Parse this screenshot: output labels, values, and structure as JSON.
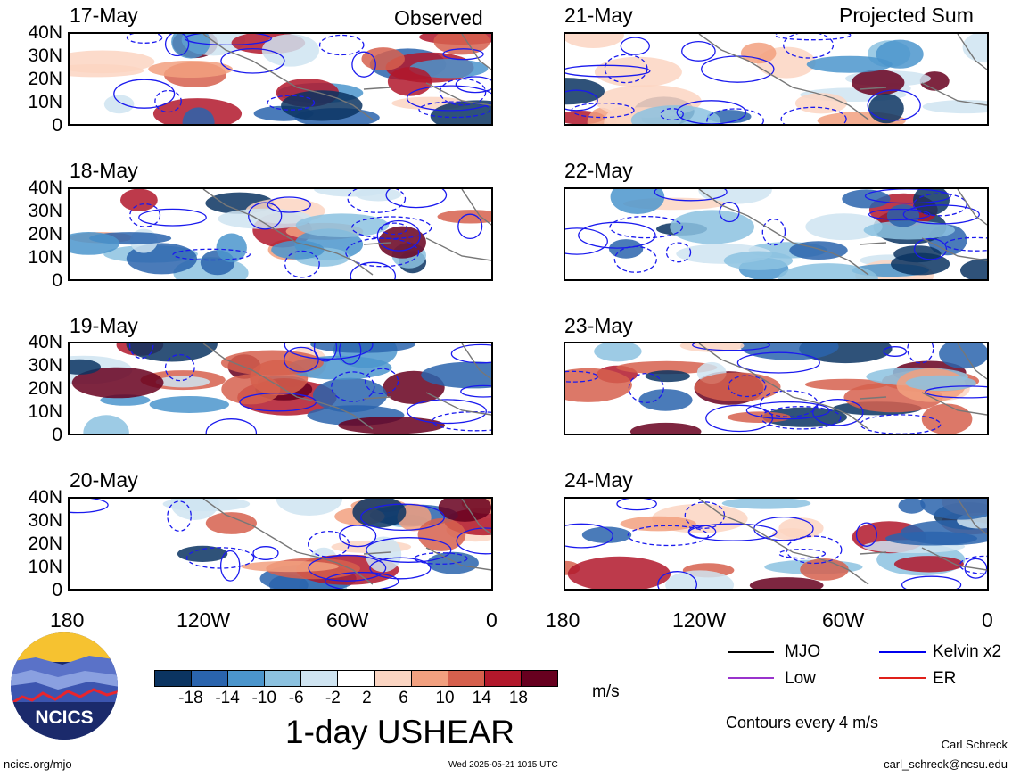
{
  "headers": {
    "left": "Observed",
    "right": "Projected Sum"
  },
  "left_panels": [
    {
      "date": "17-May"
    },
    {
      "date": "18-May"
    },
    {
      "date": "19-May"
    },
    {
      "date": "20-May"
    }
  ],
  "right_panels": [
    {
      "date": "21-May"
    },
    {
      "date": "22-May"
    },
    {
      "date": "23-May"
    },
    {
      "date": "24-May"
    }
  ],
  "lat_labels": [
    "40N",
    "30N",
    "20N",
    "10N",
    "0"
  ],
  "lon_labels": [
    "180",
    "120W",
    "60W",
    "0"
  ],
  "colorbar": {
    "labels": [
      "-18",
      "-14",
      "-10",
      "-6",
      "-2",
      "2",
      "6",
      "10",
      "14",
      "18"
    ],
    "colors": [
      "#0b3461",
      "#2a64ad",
      "#4b95cc",
      "#8cc2e0",
      "#cfe4f1",
      "#ffffff",
      "#fbd5c2",
      "#f2a07f",
      "#d6604d",
      "#b2182b",
      "#67001f"
    ],
    "units": "m/s",
    "title": "1-day USHEAR"
  },
  "legend": {
    "items": [
      {
        "label": "MJO",
        "color": "#000000"
      },
      {
        "label": "Kelvin x2",
        "color": "#0000ee"
      },
      {
        "label": "Low",
        "color": "#9933cc"
      },
      {
        "label": "ER",
        "color": "#e0201a"
      }
    ],
    "note": "Contours every 4 m/s"
  },
  "logo": {
    "text": "NCICS"
  },
  "footer": {
    "left": "ncics.org/mjo",
    "center": "Wed 2025-05-21 1015 UTC",
    "author": "Carl Schreck",
    "email": "carl_schreck@ncsu.edu"
  }
}
